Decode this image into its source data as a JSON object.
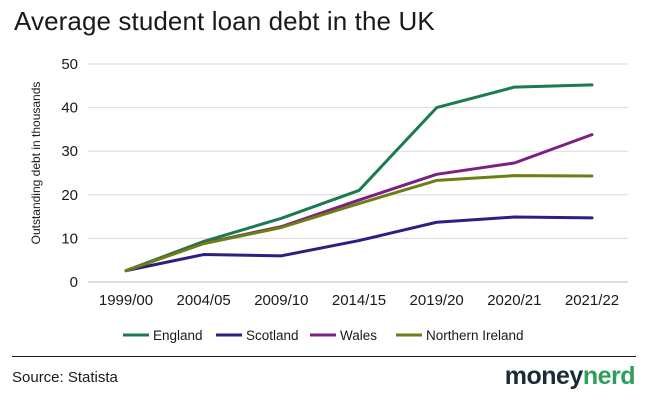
{
  "header": {
    "title": "Average student loan debt in the UK"
  },
  "footer": {
    "source": "Source: Statista",
    "logo_part1": "money",
    "logo_part2": "nerd"
  },
  "chart_data": {
    "type": "line",
    "title": "Average student loan debt in the UK",
    "xlabel": "",
    "ylabel": "Outstanding debt in thousands",
    "categories": [
      "1999/00",
      "2004/05",
      "2009/10",
      "2014/15",
      "2019/20",
      "2020/21",
      "2021/22"
    ],
    "yticks": [
      0,
      10,
      20,
      30,
      40,
      50
    ],
    "ylim": [
      0,
      50
    ],
    "grid": "horizontal",
    "legend": "bottom",
    "series": [
      {
        "name": "England",
        "color": "#1b7a4f",
        "values": [
          2.6,
          9.3,
          14.6,
          21.0,
          40.0,
          44.7,
          45.2
        ]
      },
      {
        "name": "Scotland",
        "color": "#2b1f82",
        "values": [
          2.6,
          6.3,
          6.0,
          9.5,
          13.7,
          14.9,
          14.7
        ]
      },
      {
        "name": "Wales",
        "color": "#7c1f85",
        "values": [
          2.6,
          8.9,
          12.7,
          18.8,
          24.7,
          27.3,
          33.8
        ]
      },
      {
        "name": "Northern Ireland",
        "color": "#6b7f12",
        "values": [
          2.6,
          8.8,
          12.5,
          18.0,
          23.3,
          24.4,
          24.3
        ]
      }
    ]
  }
}
